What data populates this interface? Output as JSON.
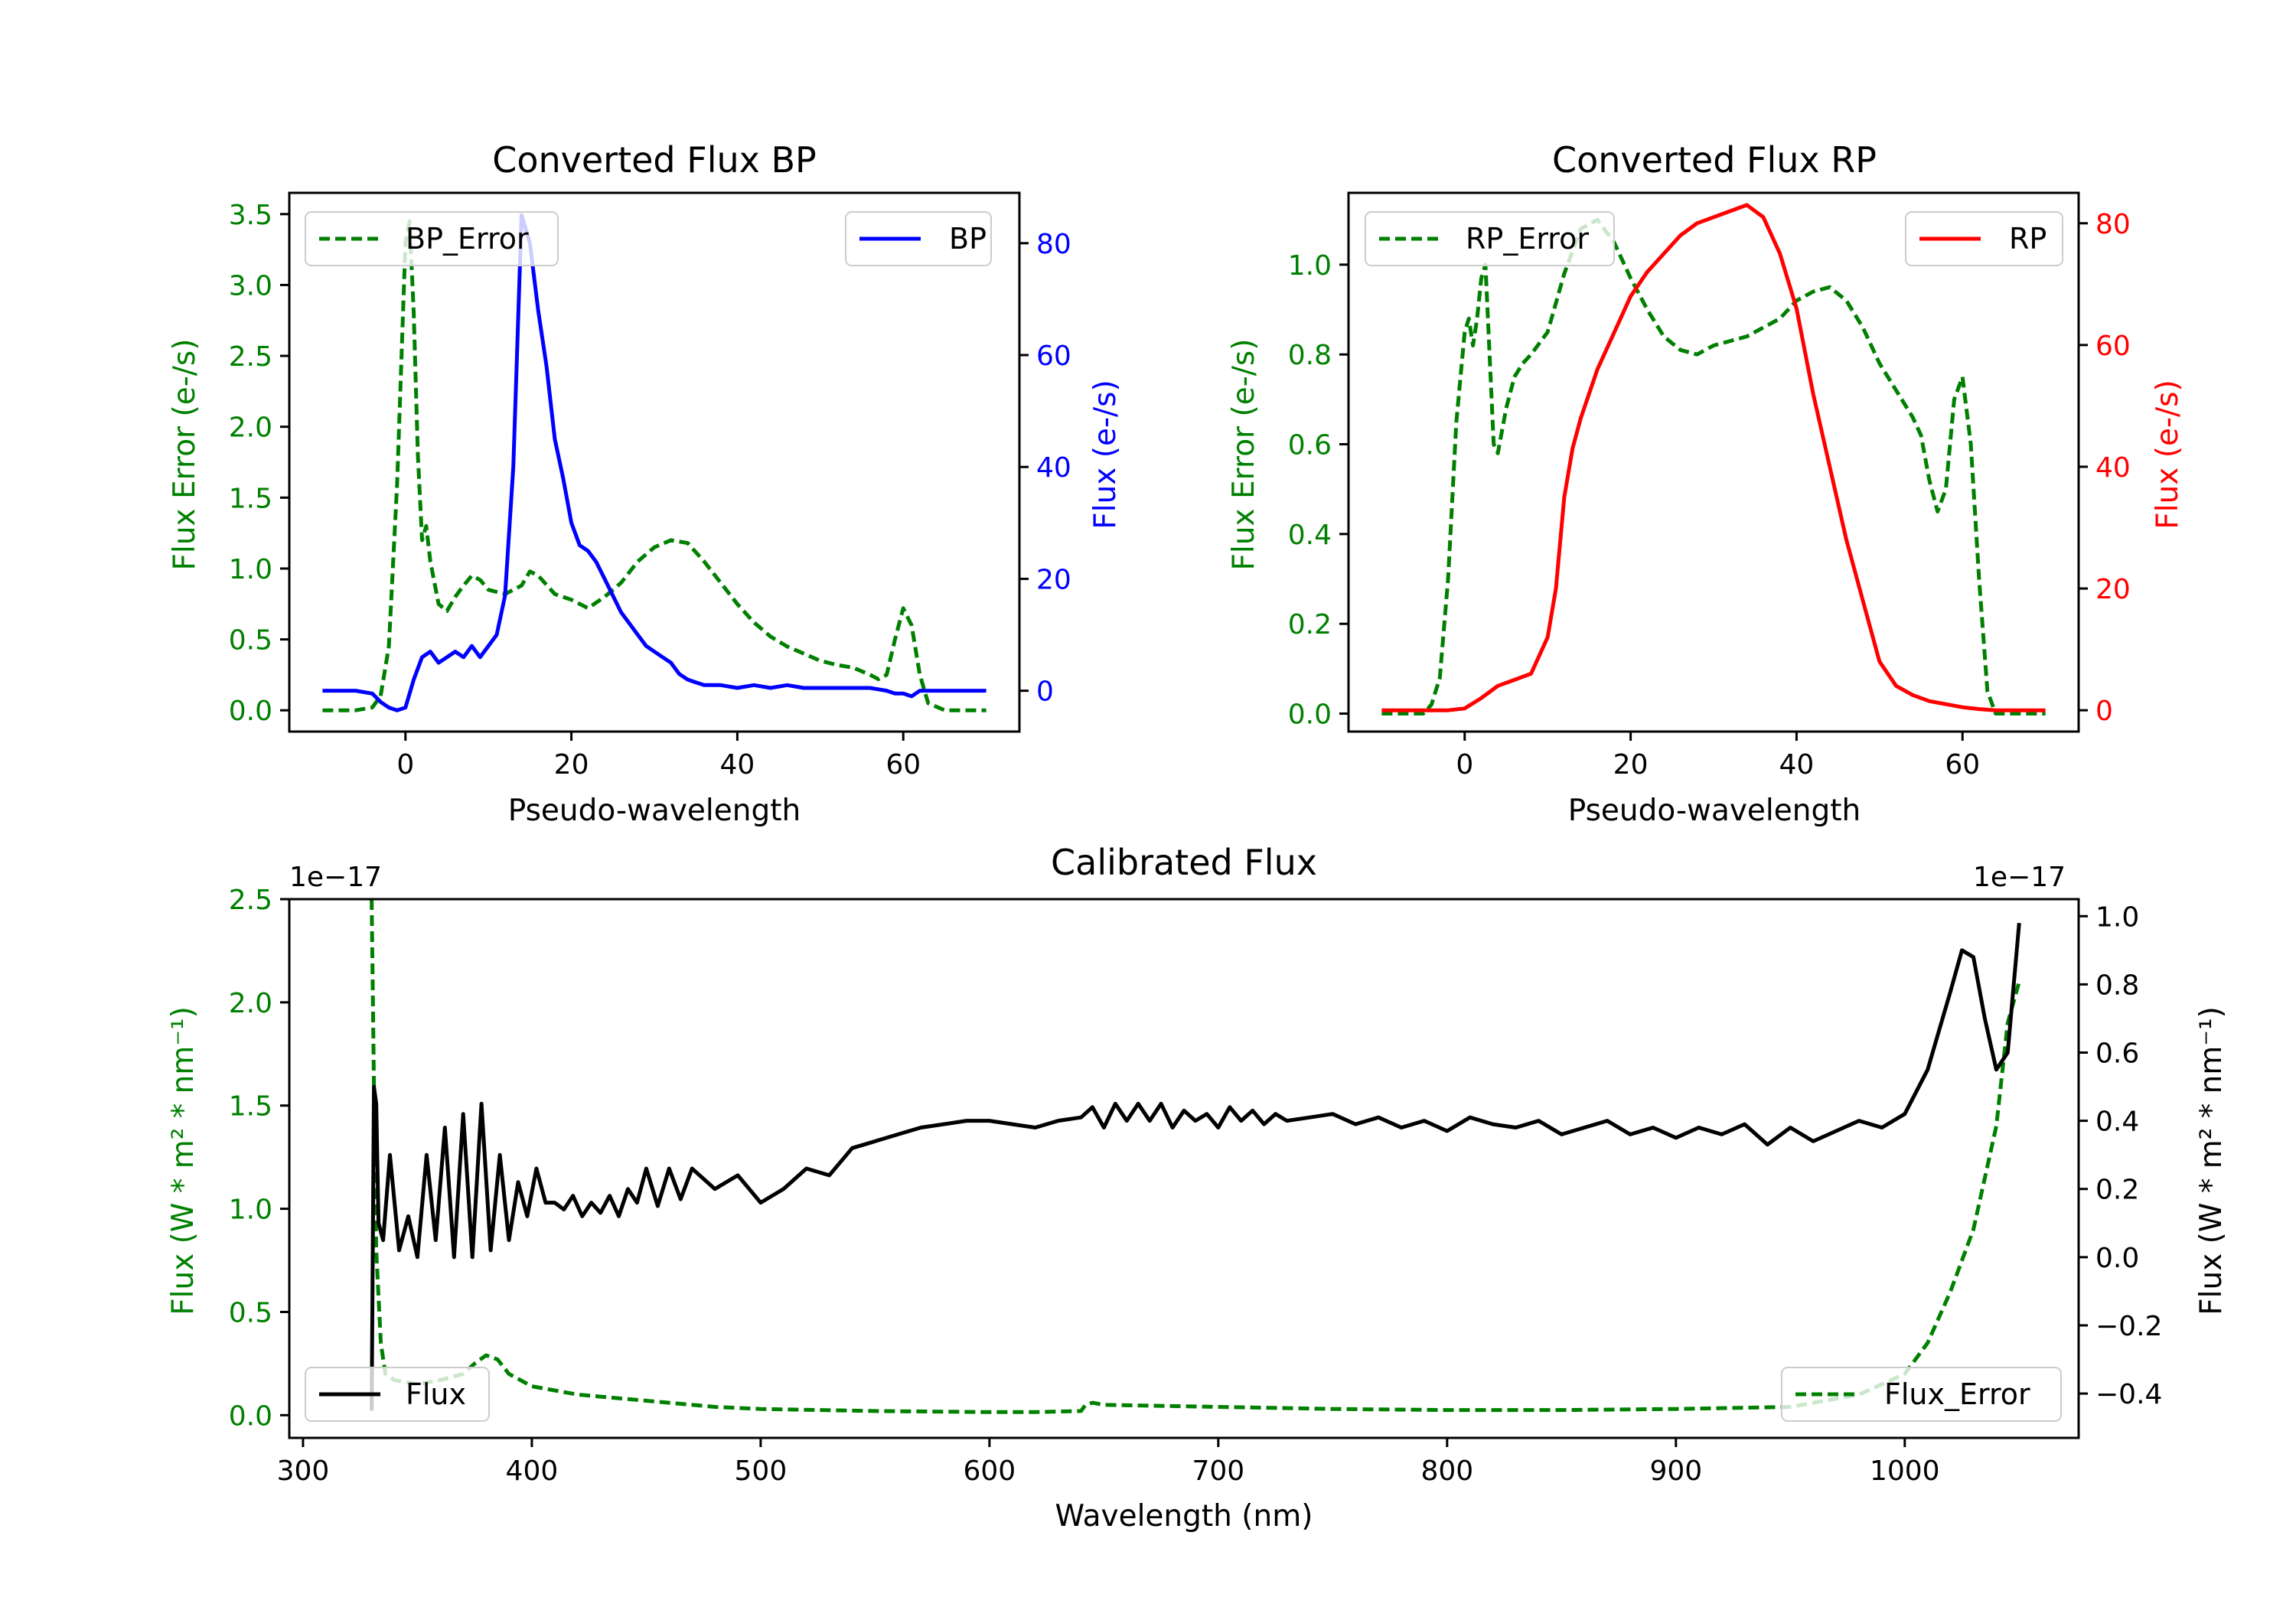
{
  "colors": {
    "error": "#008000",
    "bp": "#0000ff",
    "rp": "#ff0000",
    "flux": "#000000",
    "frame": "#000000"
  },
  "chart_data": [
    {
      "id": "bp",
      "type": "line",
      "title": "Converted Flux BP",
      "xlabel": "Pseudo-wavelength",
      "ylabel_left": "Flux Error (e-/s)",
      "ylabel_right": "Flux (e-/s)",
      "xlim": [
        -14,
        74
      ],
      "ylim_left": [
        -0.15,
        3.65
      ],
      "ylim_right": [
        -7.3,
        89
      ],
      "xticks": [
        0,
        20,
        40,
        60
      ],
      "yticks_left": [
        0.0,
        0.5,
        1.0,
        1.5,
        2.0,
        2.5,
        3.0,
        3.5
      ],
      "yticks_right": [
        0,
        20,
        40,
        60,
        80
      ],
      "legend_left": "BP_Error",
      "legend_right": "BP",
      "series": [
        {
          "name": "BP_Error",
          "axis": "left",
          "style": "dashed",
          "color": "#008000",
          "x": [
            -10,
            -6,
            -4,
            -3,
            -2,
            -1,
            0,
            0.5,
            1,
            1.5,
            2,
            2.5,
            3,
            4,
            5,
            6,
            7,
            8,
            9,
            10,
            12,
            14,
            15,
            16,
            18,
            20,
            22,
            24,
            26,
            28,
            30,
            32,
            34,
            36,
            38,
            40,
            42,
            44,
            46,
            48,
            50,
            52,
            54,
            56,
            57,
            58,
            59,
            60,
            61,
            62,
            63,
            65,
            70
          ],
          "y": [
            0,
            0,
            0.02,
            0.1,
            0.45,
            1.6,
            3.3,
            3.45,
            2.8,
            1.8,
            1.2,
            1.3,
            1.05,
            0.75,
            0.7,
            0.8,
            0.88,
            0.95,
            0.92,
            0.85,
            0.82,
            0.88,
            0.98,
            0.95,
            0.82,
            0.78,
            0.72,
            0.8,
            0.9,
            1.05,
            1.15,
            1.2,
            1.18,
            1.05,
            0.9,
            0.75,
            0.62,
            0.52,
            0.45,
            0.4,
            0.35,
            0.32,
            0.3,
            0.25,
            0.22,
            0.25,
            0.5,
            0.72,
            0.6,
            0.25,
            0.05,
            0,
            0
          ]
        },
        {
          "name": "BP",
          "axis": "right",
          "style": "solid",
          "color": "#0000ff",
          "x": [
            -10,
            -6,
            -4,
            -3,
            -2,
            -1,
            0,
            1,
            2,
            3,
            4,
            5,
            6,
            7,
            8,
            9,
            10,
            11,
            12,
            13,
            14,
            15,
            16,
            17,
            18,
            19,
            20,
            21,
            22,
            23,
            24,
            25,
            26,
            27,
            28,
            29,
            30,
            31,
            32,
            33,
            34,
            35,
            36,
            38,
            40,
            42,
            44,
            46,
            48,
            50,
            52,
            54,
            56,
            58,
            59,
            60,
            61,
            62,
            64,
            66,
            70
          ],
          "y": [
            0,
            0,
            -0.5,
            -2,
            -3,
            -3.5,
            -3,
            2,
            6,
            7,
            5,
            6,
            7,
            6,
            8,
            6,
            8,
            10,
            17,
            40,
            85,
            80,
            68,
            58,
            45,
            38,
            30,
            26,
            25,
            23,
            20,
            17,
            14,
            12,
            10,
            8,
            7,
            6,
            5,
            3,
            2,
            1.5,
            1,
            1,
            0.5,
            1,
            0.5,
            1,
            0.5,
            0.5,
            0.5,
            0.5,
            0.5,
            0,
            -0.5,
            -0.5,
            -1,
            0,
            0,
            0,
            0
          ]
        }
      ]
    },
    {
      "id": "rp",
      "type": "line",
      "title": "Converted Flux RP",
      "xlabel": "Pseudo-wavelength",
      "ylabel_left": "Flux Error (e-/s)",
      "ylabel_right": "Flux (e-/s)",
      "xlim": [
        -14,
        74
      ],
      "ylim_left": [
        -0.04,
        1.16
      ],
      "ylim_right": [
        -3.5,
        85
      ],
      "xticks": [
        0,
        20,
        40,
        60
      ],
      "yticks_left": [
        0.0,
        0.2,
        0.4,
        0.6,
        0.8,
        1.0
      ],
      "yticks_right": [
        0,
        20,
        40,
        60,
        80
      ],
      "legend_left": "RP_Error",
      "legend_right": "RP",
      "series": [
        {
          "name": "RP_Error",
          "axis": "left",
          "style": "dashed",
          "color": "#008000",
          "x": [
            -10,
            -5,
            -4,
            -3,
            -2,
            -1,
            0,
            0.5,
            1,
            1.5,
            2,
            2.5,
            3,
            3.5,
            4,
            5,
            6,
            7,
            8,
            10,
            12,
            14,
            16,
            18,
            20,
            22,
            24,
            26,
            28,
            30,
            32,
            34,
            36,
            38,
            40,
            42,
            44,
            46,
            48,
            50,
            52,
            54,
            55,
            56,
            57,
            58,
            59,
            60,
            61,
            62,
            63,
            64,
            70
          ],
          "y": [
            0,
            0,
            0.02,
            0.08,
            0.3,
            0.65,
            0.85,
            0.88,
            0.82,
            0.88,
            0.97,
            1.0,
            0.8,
            0.6,
            0.58,
            0.68,
            0.75,
            0.78,
            0.8,
            0.85,
            0.98,
            1.08,
            1.1,
            1.05,
            0.97,
            0.9,
            0.84,
            0.81,
            0.8,
            0.82,
            0.83,
            0.84,
            0.86,
            0.88,
            0.92,
            0.94,
            0.95,
            0.92,
            0.86,
            0.78,
            0.72,
            0.66,
            0.62,
            0.52,
            0.45,
            0.5,
            0.7,
            0.75,
            0.6,
            0.3,
            0.05,
            0,
            0
          ]
        },
        {
          "name": "RP",
          "axis": "right",
          "style": "solid",
          "color": "#ff0000",
          "x": [
            -10,
            -6,
            -4,
            -2,
            0,
            2,
            4,
            6,
            8,
            10,
            11,
            12,
            13,
            14,
            16,
            18,
            20,
            22,
            24,
            26,
            28,
            30,
            32,
            34,
            36,
            38,
            40,
            42,
            44,
            46,
            48,
            50,
            52,
            54,
            56,
            58,
            60,
            62,
            64,
            66,
            70
          ],
          "y": [
            0,
            0,
            0,
            0,
            0.3,
            2,
            4,
            5,
            6,
            12,
            20,
            35,
            43,
            48,
            56,
            62,
            68,
            72,
            75,
            78,
            80,
            81,
            82,
            83,
            81,
            75,
            66,
            52,
            40,
            28,
            18,
            8,
            4,
            2.5,
            1.5,
            1,
            0.5,
            0.2,
            0,
            0,
            0
          ]
        }
      ]
    },
    {
      "id": "calibrated",
      "type": "line",
      "title": "Calibrated Flux",
      "xlabel": "Wavelength (nm)",
      "ylabel_left": "Flux (W * m² * nm⁻¹)",
      "ylabel_right": "Flux (W * m² * nm⁻¹)",
      "offset_left": "1e−17",
      "offset_right": "1e−17",
      "xlim": [
        294,
        1076
      ],
      "ylim_left": [
        -0.11,
        2.5
      ],
      "ylim_right": [
        -0.53,
        1.05
      ],
      "xticks": [
        300,
        400,
        500,
        600,
        700,
        800,
        900,
        1000
      ],
      "yticks_left": [
        0.0,
        0.5,
        1.0,
        1.5,
        2.0,
        2.5
      ],
      "yticks_right": [
        -0.4,
        -0.2,
        0.0,
        0.2,
        0.4,
        0.6,
        0.8,
        1.0
      ],
      "legend_left": "Flux",
      "legend_right": "Flux_Error",
      "series": [
        {
          "name": "Flux_Error",
          "axis": "left",
          "style": "dashed",
          "color": "#008000",
          "x": [
            330,
            331,
            332,
            334,
            336,
            340,
            350,
            360,
            370,
            375,
            380,
            385,
            390,
            400,
            410,
            420,
            440,
            460,
            480,
            500,
            550,
            600,
            620,
            640,
            642,
            645,
            650,
            700,
            750,
            800,
            850,
            900,
            950,
            980,
            1000,
            1010,
            1020,
            1030,
            1040,
            1045,
            1050
          ],
          "y": [
            2.5,
            1.6,
            0.8,
            0.35,
            0.2,
            0.17,
            0.15,
            0.17,
            0.2,
            0.25,
            0.29,
            0.27,
            0.2,
            0.14,
            0.12,
            0.1,
            0.08,
            0.06,
            0.04,
            0.03,
            0.02,
            0.015,
            0.015,
            0.02,
            0.05,
            0.06,
            0.05,
            0.04,
            0.03,
            0.025,
            0.025,
            0.03,
            0.04,
            0.1,
            0.2,
            0.35,
            0.6,
            0.9,
            1.4,
            1.9,
            2.1
          ]
        },
        {
          "name": "Flux",
          "axis": "right",
          "style": "solid",
          "color": "#000000",
          "x": [
            330,
            331,
            332,
            333,
            335,
            338,
            342,
            346,
            350,
            354,
            358,
            362,
            366,
            370,
            374,
            378,
            382,
            386,
            390,
            394,
            398,
            402,
            406,
            410,
            414,
            418,
            422,
            426,
            430,
            434,
            438,
            442,
            446,
            450,
            455,
            460,
            465,
            470,
            480,
            490,
            500,
            510,
            520,
            530,
            540,
            550,
            560,
            570,
            580,
            590,
            600,
            610,
            620,
            630,
            640,
            645,
            650,
            655,
            660,
            665,
            670,
            675,
            680,
            685,
            690,
            695,
            700,
            705,
            710,
            715,
            720,
            725,
            730,
            740,
            750,
            760,
            770,
            780,
            790,
            800,
            810,
            820,
            830,
            840,
            850,
            860,
            870,
            880,
            890,
            900,
            910,
            920,
            930,
            940,
            950,
            960,
            970,
            980,
            990,
            1000,
            1010,
            1020,
            1025,
            1030,
            1035,
            1040,
            1045,
            1050
          ],
          "y": [
            -0.45,
            0.5,
            0.45,
            0.1,
            0.05,
            0.3,
            0.02,
            0.12,
            0.0,
            0.3,
            0.05,
            0.38,
            0.0,
            0.42,
            0.0,
            0.45,
            0.02,
            0.3,
            0.05,
            0.22,
            0.12,
            0.26,
            0.16,
            0.16,
            0.14,
            0.18,
            0.12,
            0.16,
            0.13,
            0.18,
            0.12,
            0.2,
            0.16,
            0.26,
            0.15,
            0.26,
            0.17,
            0.26,
            0.2,
            0.24,
            0.16,
            0.2,
            0.26,
            0.24,
            0.32,
            0.34,
            0.36,
            0.38,
            0.39,
            0.4,
            0.4,
            0.39,
            0.38,
            0.4,
            0.41,
            0.44,
            0.38,
            0.45,
            0.4,
            0.45,
            0.4,
            0.45,
            0.38,
            0.43,
            0.4,
            0.42,
            0.38,
            0.44,
            0.4,
            0.43,
            0.39,
            0.42,
            0.4,
            0.41,
            0.42,
            0.39,
            0.41,
            0.38,
            0.4,
            0.37,
            0.41,
            0.39,
            0.38,
            0.4,
            0.36,
            0.38,
            0.4,
            0.36,
            0.38,
            0.35,
            0.38,
            0.36,
            0.39,
            0.33,
            0.38,
            0.34,
            0.37,
            0.4,
            0.38,
            0.42,
            0.55,
            0.78,
            0.9,
            0.88,
            0.7,
            0.55,
            0.6,
            0.98
          ]
        }
      ]
    }
  ]
}
